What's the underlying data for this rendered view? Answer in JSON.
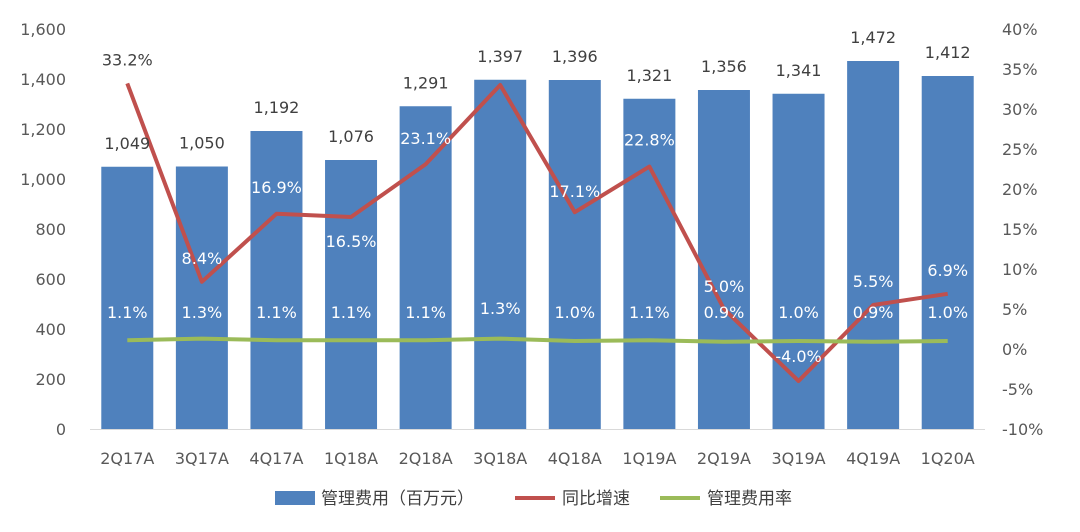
{
  "chart_data": {
    "type": "bar",
    "categories": [
      "2Q17A",
      "3Q17A",
      "4Q17A",
      "1Q18A",
      "2Q18A",
      "3Q18A",
      "4Q18A",
      "1Q19A",
      "2Q19A",
      "3Q19A",
      "4Q19A",
      "1Q20A"
    ],
    "series": [
      {
        "name": "管理费用（百万元）",
        "type": "bar",
        "axis": "left",
        "color": "#4F81BD",
        "values": [
          1049,
          1050,
          1192,
          1076,
          1291,
          1397,
          1396,
          1321,
          1356,
          1341,
          1472,
          1412
        ],
        "labels": [
          "1,049",
          "1,050",
          "1,192",
          "1,076",
          "1,291",
          "1,397",
          "1,396",
          "1,321",
          "1,356",
          "1,341",
          "1,472",
          "1,412"
        ]
      },
      {
        "name": "同比增速",
        "type": "line",
        "axis": "right",
        "color": "#C0504D",
        "values": [
          33.2,
          8.4,
          16.9,
          16.5,
          23.1,
          33.0,
          17.1,
          22.8,
          5.0,
          -4.0,
          5.5,
          6.9
        ],
        "labels": [
          "33.2%",
          "8.4%",
          "16.9%",
          "16.5%",
          "23.1%",
          "33.0%",
          "17.1%",
          "22.8%",
          "5.0%",
          "-4.0%",
          "5.5%",
          "6.9%"
        ]
      },
      {
        "name": "管理费用率",
        "type": "line",
        "axis": "right",
        "color": "#9BBB59",
        "values": [
          1.1,
          1.3,
          1.1,
          1.1,
          1.1,
          1.3,
          1.0,
          1.1,
          0.9,
          1.0,
          0.9,
          1.0
        ],
        "labels": [
          "1.1%",
          "1.3%",
          "1.1%",
          "1.1%",
          "1.1%",
          "1.3%",
          "1.0%",
          "1.1%",
          "0.9%",
          "1.0%",
          "0.9%",
          "1.0%"
        ]
      }
    ],
    "ylim_left": [
      0,
      1600
    ],
    "yticks_left": [
      "0",
      "200",
      "400",
      "600",
      "800",
      "1,000",
      "1,200",
      "1,400",
      "1,600"
    ],
    "ylim_right": [
      -10,
      40
    ],
    "yticks_right": [
      "-10%",
      "-5%",
      "0%",
      "5%",
      "10%",
      "15%",
      "20%",
      "25%",
      "30%",
      "35%",
      "40%"
    ],
    "grid": false,
    "legend_position": "bottom"
  }
}
